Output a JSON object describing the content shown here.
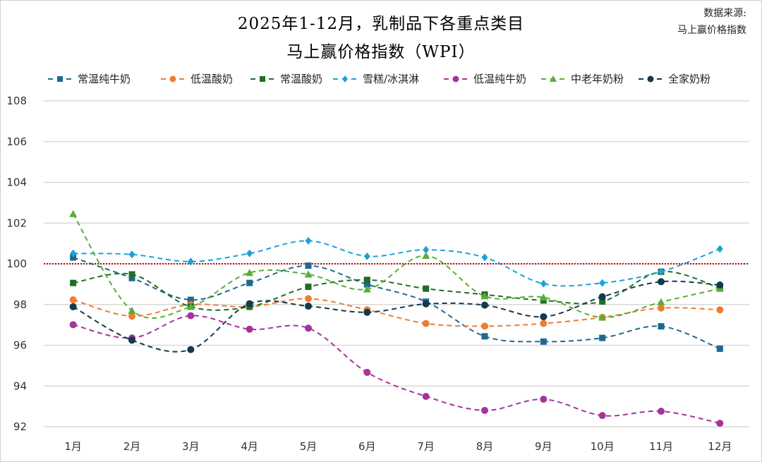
{
  "source": {
    "line1": "数据来源:",
    "line2": "马上赢价格指数"
  },
  "chart_data": {
    "type": "line",
    "title": "2025年1-12月，乳制品下各重点类目",
    "subtitle": "马上赢价格指数（WPI）",
    "categories": [
      "1月",
      "2月",
      "3月",
      "4月",
      "5月",
      "6月",
      "7月",
      "8月",
      "9月",
      "10月",
      "11月",
      "12月"
    ],
    "ylim": [
      92,
      108
    ],
    "yticks": [
      92,
      94,
      96,
      98,
      100,
      102,
      104,
      106,
      108
    ],
    "reference_line": {
      "value": 100,
      "color": "#cc0000",
      "style": "dotted"
    },
    "grid": "horizontal",
    "legend_position": "top",
    "series": [
      {
        "name": "常温纯牛奶",
        "color": "#1f6891",
        "marker": "square",
        "values": [
          100.31,
          99.3,
          98.23,
          99.06,
          99.91,
          98.99,
          98.14,
          96.44,
          96.18,
          96.36,
          96.93,
          95.83
        ]
      },
      {
        "name": "低温酸奶",
        "color": "#ed7d31",
        "marker": "circle",
        "values": [
          98.23,
          97.43,
          98.0,
          97.89,
          98.29,
          97.74,
          97.07,
          96.94,
          97.07,
          97.37,
          97.83,
          97.74
        ]
      },
      {
        "name": "常温酸奶",
        "color": "#1e6e23",
        "marker": "square",
        "values": [
          99.06,
          99.48,
          97.89,
          97.89,
          98.87,
          99.21,
          98.78,
          98.49,
          98.2,
          98.15,
          99.61,
          98.81
        ]
      },
      {
        "name": "雪糕/冰淇淋",
        "color": "#1ba1d9",
        "marker": "diamond",
        "values": [
          100.51,
          100.46,
          100.11,
          100.51,
          101.13,
          100.37,
          100.69,
          100.31,
          99.02,
          99.06,
          99.61,
          100.73
        ]
      },
      {
        "name": "低温纯牛奶",
        "color": "#a5339b",
        "marker": "circle",
        "values": [
          97.01,
          96.36,
          97.45,
          96.79,
          96.84,
          94.67,
          93.49,
          92.8,
          93.35,
          92.55,
          92.76,
          92.17
        ]
      },
      {
        "name": "中老年奶粉",
        "color": "#5aad38",
        "marker": "triangle",
        "values": [
          102.45,
          97.7,
          97.89,
          99.56,
          99.48,
          98.75,
          100.4,
          98.41,
          98.35,
          97.37,
          98.12,
          98.78
        ]
      },
      {
        "name": "全家奶粉",
        "color": "#13394d",
        "marker": "circle",
        "values": [
          97.89,
          96.25,
          95.79,
          98.04,
          97.92,
          97.62,
          98.03,
          97.97,
          97.4,
          98.38,
          99.12,
          98.96
        ]
      }
    ]
  }
}
